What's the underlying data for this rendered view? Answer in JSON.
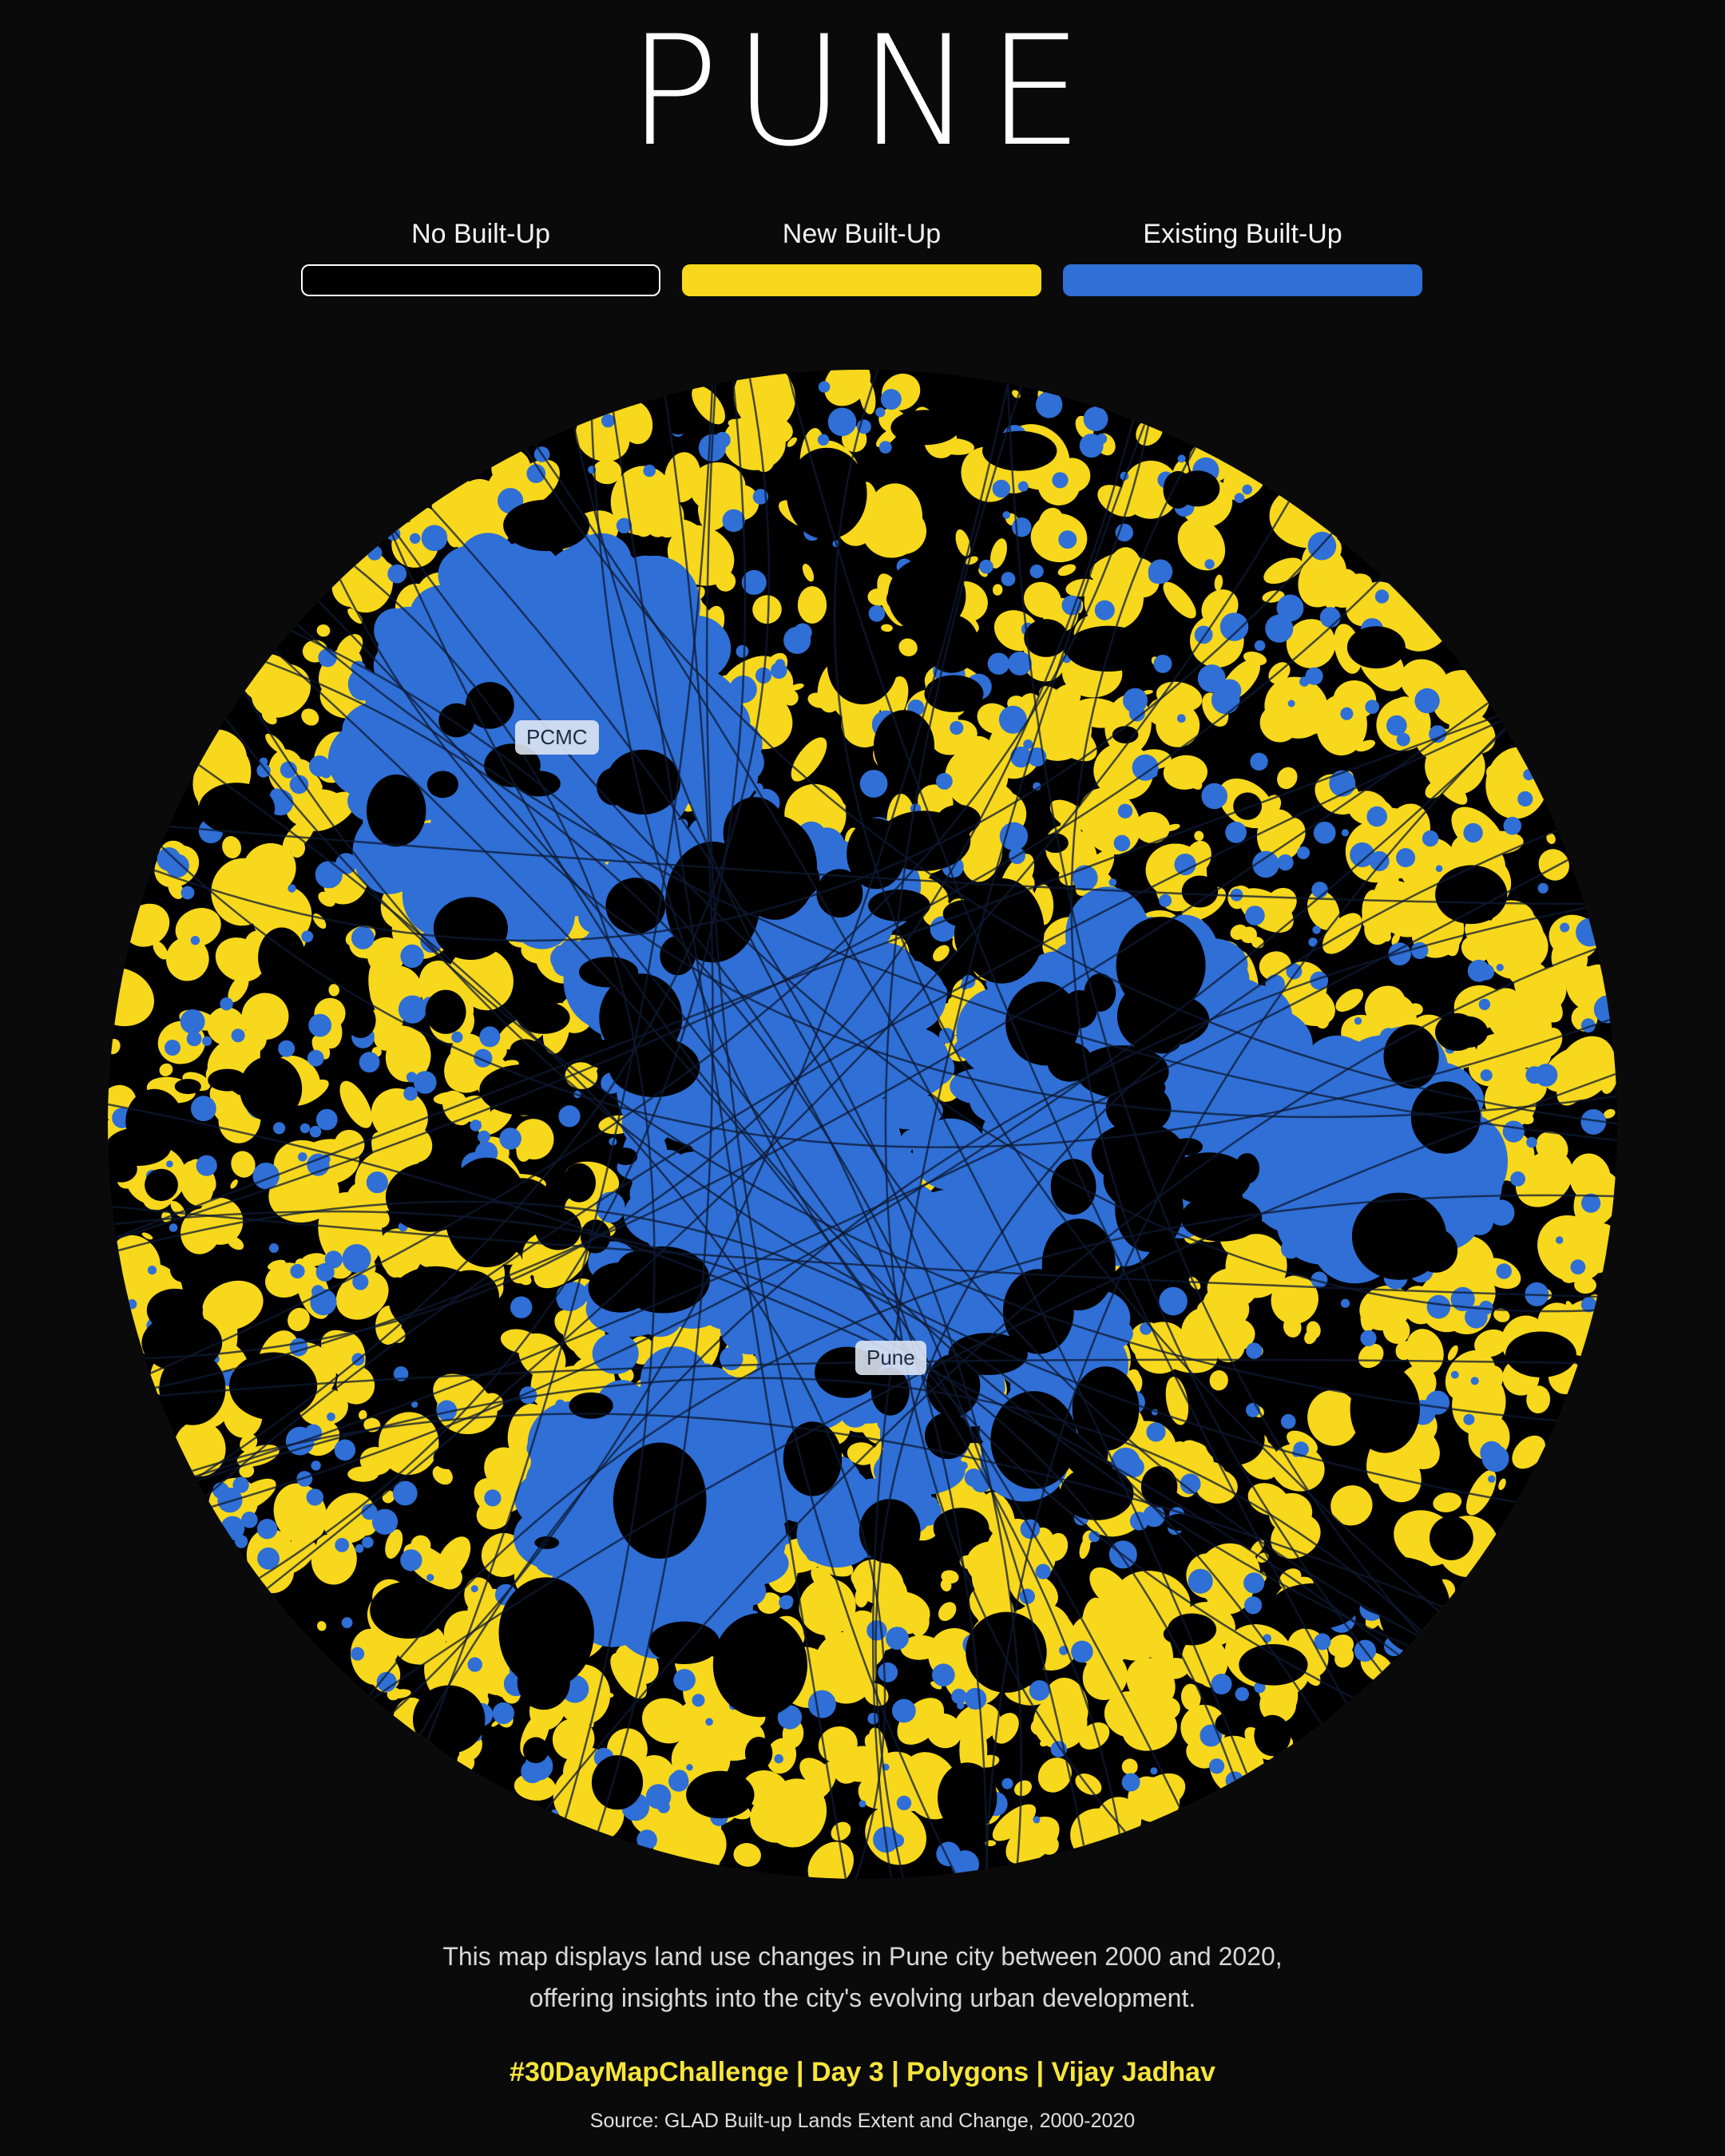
{
  "title": "PUNE",
  "legend": [
    {
      "label": "No Built-Up",
      "color": "#000000",
      "border": "#ffffff"
    },
    {
      "label": "New Built-Up",
      "color": "#f7d81c",
      "border": "#f7d81c"
    },
    {
      "label": "Existing Built-Up",
      "color": "#2f6fd6",
      "border": "#2f6fd6"
    }
  ],
  "map": {
    "labels": {
      "pcmc": "PCMC",
      "pune": "Pune"
    },
    "colors": {
      "background": "#000000",
      "new": "#f7d81c",
      "existing": "#2f6fd6",
      "roads": "#0d1a33"
    }
  },
  "description": {
    "line1": "This map displays land use changes in Pune city between 2000 and 2020,",
    "line2": "offering insights into the city's evolving urban development."
  },
  "credit": "#30DayMapChallenge | Day 3 | Polygons | Vijay Jadhav",
  "source": "Source: GLAD Built-up Lands Extent and Change, 2000-2020"
}
